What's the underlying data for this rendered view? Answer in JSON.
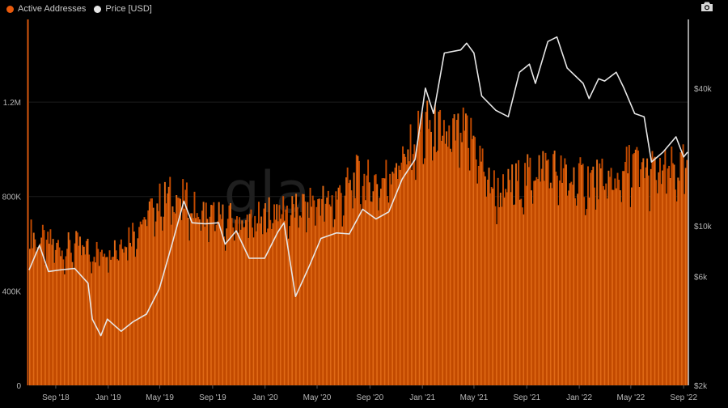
{
  "legend": {
    "active_label": "Active Addresses",
    "price_label": "Price [USD]"
  },
  "icons": {
    "camera": "camera-icon"
  },
  "watermark": "gla",
  "colors": {
    "active": "#c24a00",
    "active_light": "#e06a16",
    "price": "#e6e6e6",
    "grid": "#1c1c1c",
    "background": "#000000"
  },
  "chart_data": {
    "type": "bar",
    "title": "",
    "xlabel": "",
    "ylabel": "",
    "x_range": [
      "2018-07-01",
      "2022-09-10"
    ],
    "x_ticks": [
      "Sep '18",
      "Jan '19",
      "May '19",
      "Sep '19",
      "Jan '20",
      "May '20",
      "Sep '20",
      "Jan '21",
      "May '21",
      "Sep '21",
      "Jan '22",
      "May '22",
      "Sep '22"
    ],
    "x_tick_dates": [
      "2018-09-01",
      "2019-01-01",
      "2019-05-01",
      "2019-09-01",
      "2020-01-01",
      "2020-05-01",
      "2020-09-01",
      "2021-01-01",
      "2021-05-01",
      "2021-09-01",
      "2022-01-01",
      "2022-05-01",
      "2022-09-01"
    ],
    "y_left": {
      "ticks": [
        0,
        400000,
        800000,
        1200000
      ],
      "tick_labels": [
        "0",
        "400K",
        "800K",
        "1.2M"
      ],
      "range": [
        0,
        1550000
      ]
    },
    "y_right": {
      "scale": "log",
      "ticks": [
        2000,
        6000,
        10000,
        40000
      ],
      "tick_labels": [
        "$2k",
        "$6k",
        "$10k",
        "$40k"
      ],
      "range": [
        2000,
        80000
      ]
    },
    "series": [
      {
        "name": "Active Addresses",
        "axis": "left",
        "type": "bar",
        "points": [
          [
            "2018-07-01",
            630000
          ],
          [
            "2018-08-01",
            600000
          ],
          [
            "2018-09-01",
            580000
          ],
          [
            "2018-10-01",
            570000
          ],
          [
            "2018-11-01",
            580000
          ],
          [
            "2018-12-01",
            550000
          ],
          [
            "2019-01-01",
            570000
          ],
          [
            "2019-02-01",
            600000
          ],
          [
            "2019-03-01",
            640000
          ],
          [
            "2019-04-01",
            710000
          ],
          [
            "2019-05-01",
            760000
          ],
          [
            "2019-06-01",
            790000
          ],
          [
            "2019-07-01",
            760000
          ],
          [
            "2019-08-01",
            710000
          ],
          [
            "2019-09-01",
            700000
          ],
          [
            "2019-10-01",
            680000
          ],
          [
            "2019-11-01",
            690000
          ],
          [
            "2019-12-01",
            670000
          ],
          [
            "2020-01-01",
            700000
          ],
          [
            "2020-02-01",
            740000
          ],
          [
            "2020-03-01",
            720000
          ],
          [
            "2020-04-01",
            740000
          ],
          [
            "2020-05-01",
            770000
          ],
          [
            "2020-06-01",
            760000
          ],
          [
            "2020-07-01",
            800000
          ],
          [
            "2020-08-01",
            860000
          ],
          [
            "2020-09-01",
            840000
          ],
          [
            "2020-10-01",
            850000
          ],
          [
            "2020-11-01",
            930000
          ],
          [
            "2020-12-01",
            960000
          ],
          [
            "2021-01-01",
            1080000
          ],
          [
            "2021-02-01",
            1050000
          ],
          [
            "2021-03-01",
            1020000
          ],
          [
            "2021-04-01",
            1040000
          ],
          [
            "2021-05-01",
            1020000
          ],
          [
            "2021-06-01",
            860000
          ],
          [
            "2021-07-01",
            790000
          ],
          [
            "2021-08-01",
            840000
          ],
          [
            "2021-09-01",
            860000
          ],
          [
            "2021-10-01",
            920000
          ],
          [
            "2021-11-01",
            900000
          ],
          [
            "2021-12-01",
            860000
          ],
          [
            "2022-01-01",
            850000
          ],
          [
            "2022-02-01",
            860000
          ],
          [
            "2022-03-01",
            840000
          ],
          [
            "2022-04-01",
            860000
          ],
          [
            "2022-05-01",
            920000
          ],
          [
            "2022-06-01",
            900000
          ],
          [
            "2022-07-01",
            880000
          ],
          [
            "2022-08-01",
            890000
          ],
          [
            "2022-09-01",
            900000
          ]
        ]
      },
      {
        "name": "Price [USD]",
        "axis": "right",
        "type": "line",
        "points": [
          [
            "2018-07-01",
            6400
          ],
          [
            "2018-07-25",
            8200
          ],
          [
            "2018-08-15",
            6300
          ],
          [
            "2018-09-10",
            6400
          ],
          [
            "2018-10-15",
            6500
          ],
          [
            "2018-11-15",
            5600
          ],
          [
            "2018-11-25",
            3900
          ],
          [
            "2018-12-15",
            3300
          ],
          [
            "2018-12-30",
            3900
          ],
          [
            "2019-01-31",
            3450
          ],
          [
            "2019-02-28",
            3800
          ],
          [
            "2019-03-31",
            4100
          ],
          [
            "2019-04-30",
            5300
          ],
          [
            "2019-05-31",
            8500
          ],
          [
            "2019-06-26",
            12800
          ],
          [
            "2019-07-15",
            10300
          ],
          [
            "2019-08-15",
            10200
          ],
          [
            "2019-09-15",
            10300
          ],
          [
            "2019-09-30",
            8300
          ],
          [
            "2019-10-26",
            9500
          ],
          [
            "2019-11-25",
            7200
          ],
          [
            "2019-12-31",
            7200
          ],
          [
            "2020-01-31",
            9400
          ],
          [
            "2020-02-14",
            10300
          ],
          [
            "2020-03-12",
            4900
          ],
          [
            "2020-04-15",
            6800
          ],
          [
            "2020-05-10",
            8800
          ],
          [
            "2020-06-15",
            9300
          ],
          [
            "2020-07-15",
            9200
          ],
          [
            "2020-08-15",
            11800
          ],
          [
            "2020-09-15",
            10700
          ],
          [
            "2020-10-15",
            11500
          ],
          [
            "2020-11-15",
            16000
          ],
          [
            "2020-12-15",
            19500
          ],
          [
            "2021-01-08",
            40000
          ],
          [
            "2021-01-27",
            31000
          ],
          [
            "2021-02-21",
            57000
          ],
          [
            "2021-03-31",
            58800
          ],
          [
            "2021-04-14",
            63000
          ],
          [
            "2021-05-01",
            57000
          ],
          [
            "2021-05-19",
            37000
          ],
          [
            "2021-06-21",
            32000
          ],
          [
            "2021-07-20",
            30000
          ],
          [
            "2021-08-15",
            47000
          ],
          [
            "2021-09-07",
            51000
          ],
          [
            "2021-09-21",
            42000
          ],
          [
            "2021-10-20",
            64000
          ],
          [
            "2021-11-10",
            67000
          ],
          [
            "2021-12-04",
            49000
          ],
          [
            "2022-01-10",
            42000
          ],
          [
            "2022-01-24",
            36000
          ],
          [
            "2022-02-15",
            44000
          ],
          [
            "2022-03-01",
            43000
          ],
          [
            "2022-03-28",
            47000
          ],
          [
            "2022-04-15",
            40000
          ],
          [
            "2022-05-10",
            31000
          ],
          [
            "2022-06-01",
            30000
          ],
          [
            "2022-06-18",
            19000
          ],
          [
            "2022-07-15",
            21000
          ],
          [
            "2022-08-14",
            24500
          ],
          [
            "2022-09-01",
            20000
          ],
          [
            "2022-09-10",
            21000
          ]
        ]
      }
    ]
  }
}
